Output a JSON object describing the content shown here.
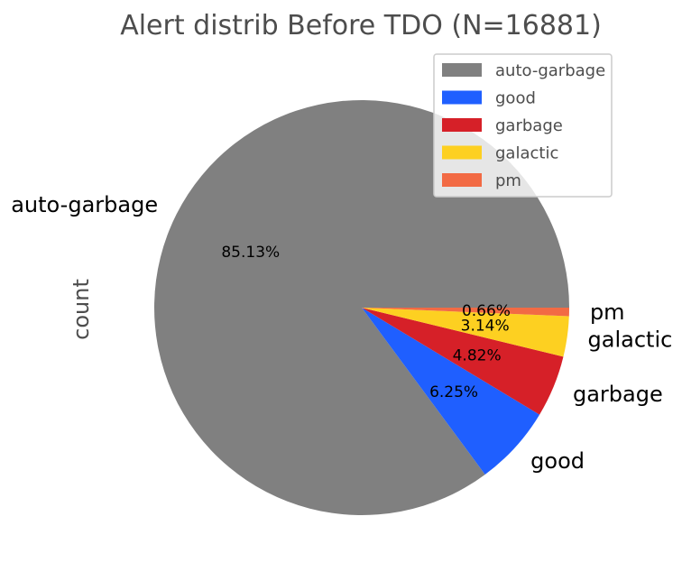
{
  "chart_data": {
    "type": "pie",
    "title": "Alert distrib Before TDO (N=16881)",
    "ylabel": "count",
    "categories": [
      "auto-garbage",
      "good",
      "garbage",
      "galactic",
      "pm"
    ],
    "values": [
      85.13,
      6.25,
      4.82,
      3.14,
      0.66
    ],
    "value_labels": [
      "85.13%",
      "6.25%",
      "4.82%",
      "3.14%",
      "0.66%"
    ],
    "colors": [
      "#808080",
      "#1f5fff",
      "#d62028",
      "#fdd021",
      "#f26a44"
    ],
    "legend": {
      "placement": "top-right",
      "entries": [
        "auto-garbage",
        "good",
        "garbage",
        "galactic",
        "pm"
      ]
    }
  }
}
